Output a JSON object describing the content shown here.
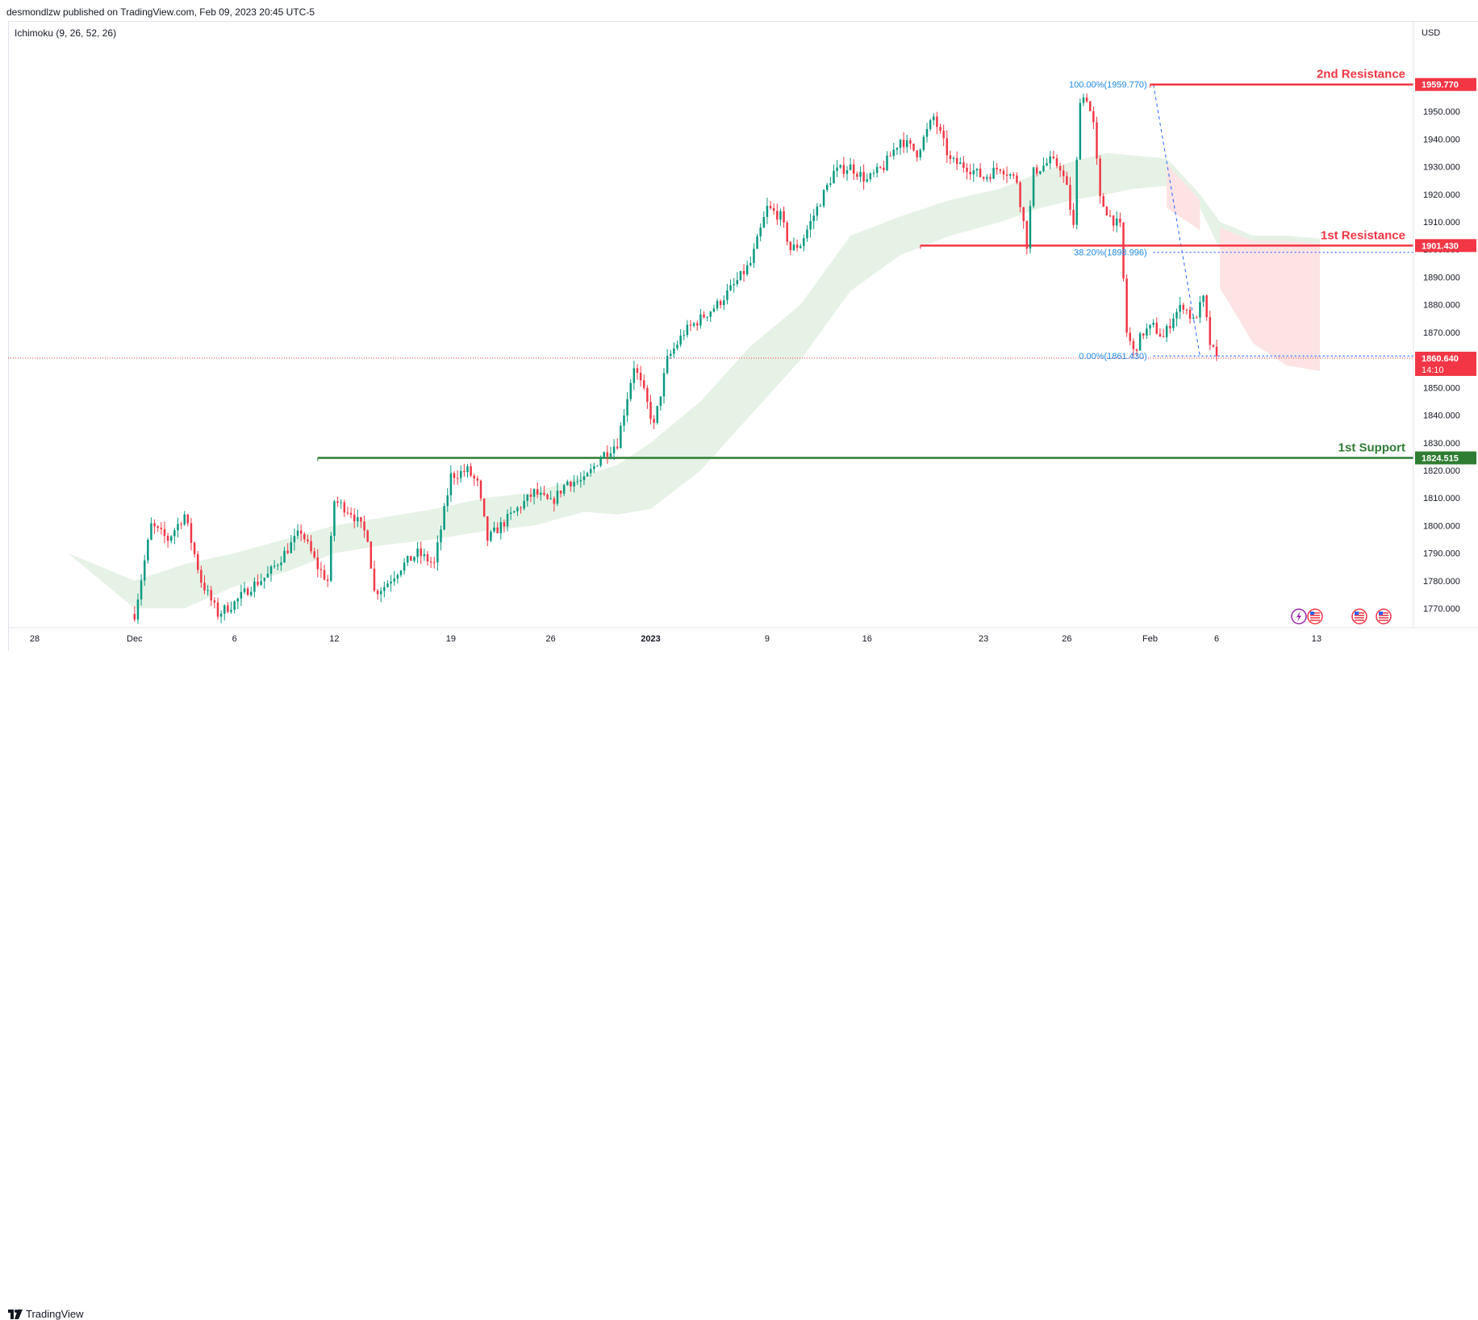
{
  "header": {
    "publisher_line": "desmondlzw published on TradingView.com, Feb 09, 2023 20:45 UTC-5",
    "indicator_label": "Ichimoku (9, 26, 52, 26)"
  },
  "footer": {
    "logo_text": "TradingView"
  },
  "colors": {
    "up": "#089981",
    "down": "#f23645",
    "resistance": "#f23645",
    "support": "#2e7d32",
    "fib": "#2962ff",
    "fib_text": "#1e88e5",
    "cloud_bull": "#e6f2e6",
    "cloud_bear": "#fde3e3",
    "axis_text": "#131722",
    "grid": "#e0e3eb"
  },
  "chart_data": {
    "type": "candlestick",
    "instrument_quote": "USD",
    "y_axis": {
      "unit_label": "USD",
      "ticks": [
        "1770.000",
        "1780.000",
        "1790.000",
        "1800.000",
        "1810.000",
        "1820.000",
        "1830.000",
        "1840.000",
        "1850.000",
        "1860.000",
        "1870.000",
        "1880.000",
        "1890.000",
        "1900.000",
        "1910.000",
        "1920.000",
        "1930.000",
        "1940.000",
        "1950.000"
      ],
      "ylim": [
        1763,
        1967
      ]
    },
    "x_axis": {
      "ticks": [
        {
          "label": "28",
          "bar": -30
        },
        {
          "label": "Dec",
          "bar": 0
        },
        {
          "label": "6",
          "bar": 30
        },
        {
          "label": "12",
          "bar": 60
        },
        {
          "label": "19",
          "bar": 95
        },
        {
          "label": "26",
          "bar": 125
        },
        {
          "label": "2023",
          "bar": 155
        },
        {
          "label": "9",
          "bar": 190
        },
        {
          "label": "16",
          "bar": 220
        },
        {
          "label": "23",
          "bar": 255
        },
        {
          "label": "26",
          "bar": 280
        },
        {
          "label": "Feb",
          "bar": 305
        },
        {
          "label": "6",
          "bar": 325
        },
        {
          "label": "13",
          "bar": 355
        }
      ],
      "bold_labels": [
        "2023"
      ],
      "bar_range": [
        -38,
        382
      ]
    },
    "levels": [
      {
        "label": "2nd Resistance",
        "price": 1959.77,
        "price_label": "1959.770",
        "type": "resistance",
        "start_bar": 305
      },
      {
        "label": "1st Resistance",
        "price": 1901.43,
        "price_label": "1901.430",
        "type": "resistance",
        "start_bar": 236
      },
      {
        "label": "1st Support",
        "price": 1824.515,
        "price_label": "1824.515",
        "type": "support",
        "start_bar": 55
      }
    ],
    "fibonacci": [
      {
        "label": "100.00%(1959.770)",
        "price": 1959.77
      },
      {
        "label": "38.20%(1898.996)",
        "price": 1898.996
      },
      {
        "label": "0.00%(1861.430)",
        "price": 1861.43
      }
    ],
    "fib_start_bar": 306,
    "current_price": {
      "value": 1860.64,
      "label": "1860.640",
      "countdown": "14:10"
    },
    "close_path": [
      [
        0,
        1768
      ],
      [
        5,
        1800
      ],
      [
        10,
        1795
      ],
      [
        15,
        1804
      ],
      [
        20,
        1780
      ],
      [
        25,
        1768
      ],
      [
        30,
        1772
      ],
      [
        35,
        1778
      ],
      [
        40,
        1782
      ],
      [
        45,
        1790
      ],
      [
        50,
        1798
      ],
      [
        55,
        1785
      ],
      [
        58,
        1780
      ],
      [
        60,
        1809
      ],
      [
        65,
        1805
      ],
      [
        70,
        1796
      ],
      [
        72,
        1776
      ],
      [
        75,
        1778
      ],
      [
        80,
        1785
      ],
      [
        85,
        1790
      ],
      [
        90,
        1786
      ],
      [
        95,
        1818
      ],
      [
        100,
        1820
      ],
      [
        103,
        1815
      ],
      [
        106,
        1795
      ],
      [
        110,
        1800
      ],
      [
        115,
        1806
      ],
      [
        120,
        1812
      ],
      [
        125,
        1808
      ],
      [
        130,
        1816
      ],
      [
        135,
        1816
      ],
      [
        140,
        1825
      ],
      [
        145,
        1830
      ],
      [
        150,
        1858
      ],
      [
        153,
        1848
      ],
      [
        156,
        1836
      ],
      [
        160,
        1860
      ],
      [
        165,
        1870
      ],
      [
        170,
        1875
      ],
      [
        175,
        1880
      ],
      [
        180,
        1887
      ],
      [
        185,
        1895
      ],
      [
        190,
        1915
      ],
      [
        194,
        1912
      ],
      [
        197,
        1900
      ],
      [
        200,
        1902
      ],
      [
        205,
        1915
      ],
      [
        210,
        1928
      ],
      [
        215,
        1930
      ],
      [
        220,
        1925
      ],
      [
        225,
        1930
      ],
      [
        230,
        1940
      ],
      [
        235,
        1935
      ],
      [
        240,
        1948
      ],
      [
        245,
        1932
      ],
      [
        250,
        1930
      ],
      [
        255,
        1926
      ],
      [
        260,
        1930
      ],
      [
        265,
        1925
      ],
      [
        268,
        1902
      ],
      [
        270,
        1928
      ],
      [
        275,
        1932
      ],
      [
        278,
        1930
      ],
      [
        280,
        1922
      ],
      [
        282,
        1908
      ],
      [
        284,
        1955
      ],
      [
        286,
        1955
      ],
      [
        288,
        1945
      ],
      [
        290,
        1918
      ],
      [
        293,
        1912
      ],
      [
        296,
        1908
      ],
      [
        298,
        1870
      ],
      [
        300,
        1863
      ],
      [
        303,
        1870
      ],
      [
        306,
        1872
      ],
      [
        309,
        1868
      ],
      [
        312,
        1876
      ],
      [
        315,
        1880
      ],
      [
        318,
        1874
      ],
      [
        321,
        1882
      ],
      [
        323,
        1866
      ],
      [
        325,
        1860
      ]
    ],
    "cloud": [
      [
        -20,
        1790,
        1790
      ],
      [
        0,
        1770,
        1780
      ],
      [
        15,
        1770,
        1786
      ],
      [
        30,
        1778,
        1790
      ],
      [
        45,
        1783,
        1795
      ],
      [
        60,
        1790,
        1800
      ],
      [
        75,
        1793,
        1803
      ],
      [
        90,
        1795,
        1806
      ],
      [
        105,
        1798,
        1810
      ],
      [
        120,
        1800,
        1812
      ],
      [
        135,
        1805,
        1818
      ],
      [
        145,
        1804,
        1822
      ],
      [
        155,
        1806,
        1830
      ],
      [
        170,
        1820,
        1845
      ],
      [
        185,
        1840,
        1865
      ],
      [
        200,
        1860,
        1880
      ],
      [
        215,
        1885,
        1905
      ],
      [
        230,
        1898,
        1912
      ],
      [
        245,
        1905,
        1918
      ],
      [
        260,
        1910,
        1922
      ],
      [
        272,
        1915,
        1928
      ],
      [
        282,
        1918,
        1932
      ],
      [
        292,
        1920,
        1935
      ],
      [
        300,
        1922,
        1934
      ],
      [
        310,
        1923,
        1933
      ],
      [
        320,
        1915,
        1920
      ],
      [
        326,
        1900,
        1910
      ],
      [
        336,
        1880,
        1905
      ],
      [
        346,
        1872,
        1905
      ],
      [
        356,
        1870,
        1904
      ]
    ],
    "cloud_bear_zones": [
      [
        305,
        325
      ],
      [
        326,
        356
      ]
    ],
    "last_bar": 325
  }
}
